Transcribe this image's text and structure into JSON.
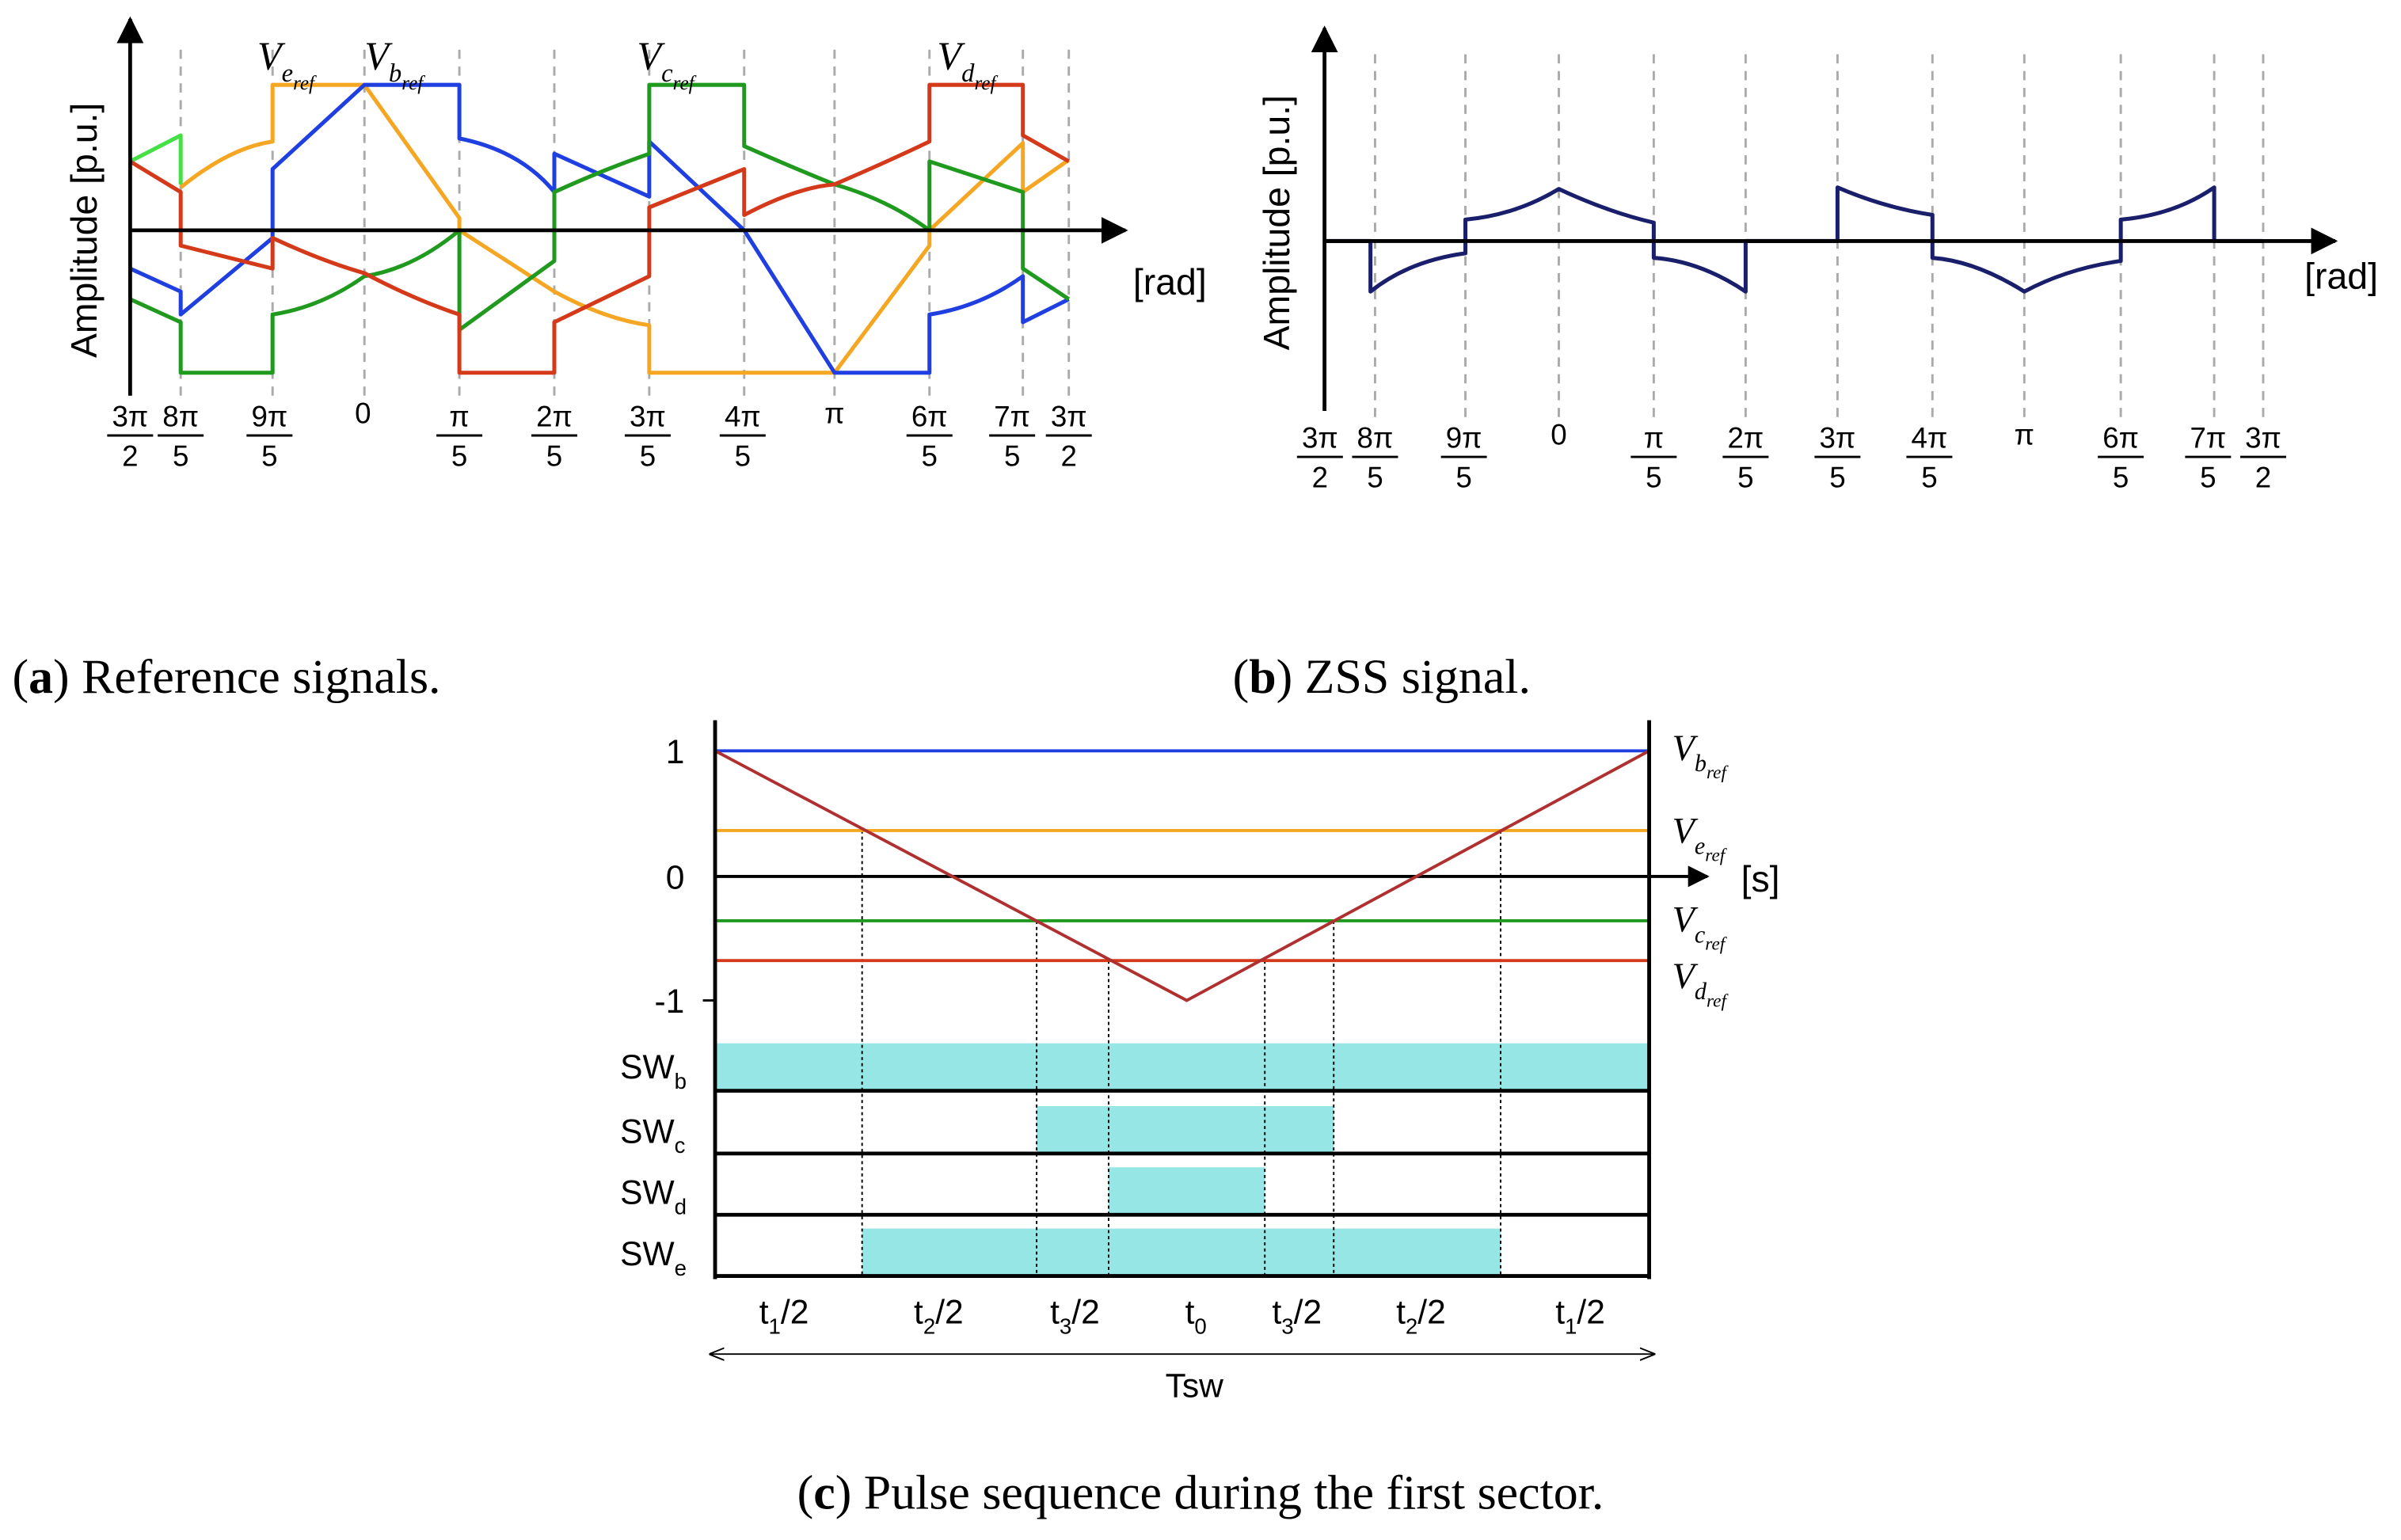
{
  "panel_a": {
    "caption": [
      "(",
      "a",
      ") Reference signals."
    ],
    "y_label": "Amplitude [p.u.]",
    "x_unit": "[rad]",
    "x_ticks": [
      {
        "num": "3π",
        "den": "2"
      },
      {
        "num": "8π",
        "den": "5"
      },
      {
        "num": "9π",
        "den": "5"
      },
      "0",
      {
        "num": "π",
        "den": "5"
      },
      {
        "num": "2π",
        "den": "5"
      },
      {
        "num": "3π",
        "den": "5"
      },
      {
        "num": "4π",
        "den": "5"
      },
      "π",
      {
        "num": "6π",
        "den": "5"
      },
      {
        "num": "7π",
        "den": "5"
      },
      {
        "num": "3π",
        "den": "2"
      }
    ],
    "signal_labels": [
      {
        "main": "V",
        "sub": "e",
        "subsub": "ref"
      },
      {
        "main": "V",
        "sub": "b",
        "subsub": "ref"
      },
      {
        "main": "V",
        "sub": "c",
        "subsub": "ref"
      },
      {
        "main": "V",
        "sub": "d",
        "subsub": "ref"
      }
    ]
  },
  "panel_b": {
    "caption": [
      "(",
      "b",
      ") ZSS signal."
    ],
    "y_label": "Amplitude [p.u.]",
    "x_unit": "[rad]",
    "x_ticks": [
      {
        "num": "3π",
        "den": "2"
      },
      {
        "num": "8π",
        "den": "5"
      },
      {
        "num": "9π",
        "den": "5"
      },
      "0",
      {
        "num": "π",
        "den": "5"
      },
      {
        "num": "2π",
        "den": "5"
      },
      {
        "num": "3π",
        "den": "5"
      },
      {
        "num": "4π",
        "den": "5"
      },
      "π",
      {
        "num": "6π",
        "den": "5"
      },
      {
        "num": "7π",
        "den": "5"
      },
      {
        "num": "3π",
        "den": "2"
      }
    ]
  },
  "panel_c": {
    "caption": [
      "(",
      "c",
      ") Pulse sequence during the first sector."
    ],
    "y_ticks": [
      1,
      0,
      -1
    ],
    "x_unit": "[s]",
    "signal_labels": [
      {
        "main": "V",
        "sub": "b",
        "subsub": "ref"
      },
      {
        "main": "V",
        "sub": "e",
        "subsub": "ref"
      },
      {
        "main": "V",
        "sub": "c",
        "subsub": "ref"
      },
      {
        "main": "V",
        "sub": "d",
        "subsub": "ref"
      }
    ],
    "switch_labels": [
      {
        "main": "SW",
        "sub": "b"
      },
      {
        "main": "SW",
        "sub": "c"
      },
      {
        "main": "SW",
        "sub": "d"
      },
      {
        "main": "SW",
        "sub": "e"
      }
    ],
    "interval_labels": [
      {
        "main": "t",
        "sub": "1",
        "rest": "/2"
      },
      {
        "main": "t",
        "sub": "2",
        "rest": "/2"
      },
      {
        "main": "t",
        "sub": "3",
        "rest": "/2"
      },
      {
        "main": "t",
        "sub": "0"
      },
      {
        "main": "t",
        "sub": "3",
        "rest": "/2"
      },
      {
        "main": "t",
        "sub": "2",
        "rest": "/2"
      },
      {
        "main": "t",
        "sub": "1",
        "rest": "/2"
      }
    ],
    "period": "Tsw"
  }
}
